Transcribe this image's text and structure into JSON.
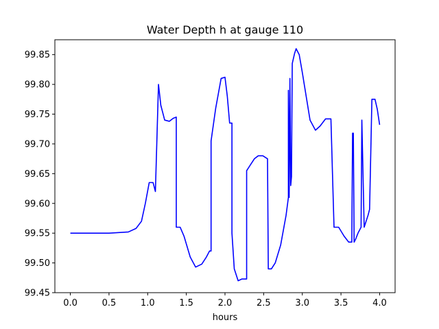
{
  "chart_data": {
    "type": "line",
    "title": "Water Depth h at gauge 110",
    "xlabel": "hours",
    "ylabel": "",
    "xlim": [
      -0.2,
      4.2
    ],
    "ylim": [
      99.45,
      99.875
    ],
    "xticks": [
      0.0,
      0.5,
      1.0,
      1.5,
      2.0,
      2.5,
      3.0,
      3.5,
      4.0
    ],
    "xtick_labels": [
      "0.0",
      "0.5",
      "1.0",
      "1.5",
      "2.0",
      "2.5",
      "3.0",
      "3.5",
      "4.0"
    ],
    "yticks": [
      99.45,
      99.5,
      99.55,
      99.6,
      99.65,
      99.7,
      99.75,
      99.8,
      99.85
    ],
    "ytick_labels": [
      "99.45",
      "99.50",
      "99.55",
      "99.60",
      "99.65",
      "99.70",
      "99.75",
      "99.80",
      "99.85"
    ],
    "grid": false,
    "series": [
      {
        "color": "#0000ff",
        "x": [
          0.0,
          0.5,
          0.75,
          0.85,
          0.92,
          0.97,
          1.02,
          1.07,
          1.1,
          1.14,
          1.14,
          1.17,
          1.22,
          1.28,
          1.33,
          1.37,
          1.37,
          1.42,
          1.47,
          1.55,
          1.62,
          1.7,
          1.76,
          1.8,
          1.82,
          1.82,
          1.88,
          1.95,
          2.0,
          2.03,
          2.06,
          2.09,
          2.09,
          2.12,
          2.17,
          2.22,
          2.28,
          2.28,
          2.28,
          2.33,
          2.38,
          2.43,
          2.49,
          2.55,
          2.55,
          2.56,
          2.6,
          2.65,
          2.72,
          2.79,
          2.82,
          2.82,
          2.83,
          2.84,
          2.85,
          2.85,
          2.86,
          2.87,
          2.87,
          2.9,
          2.92,
          2.96,
          3.0,
          3.05,
          3.1,
          3.17,
          3.23,
          3.3,
          3.37,
          3.41,
          3.41,
          3.47,
          3.54,
          3.6,
          3.64,
          3.65,
          3.66,
          3.67,
          3.67,
          3.69,
          3.72,
          3.76,
          3.77,
          3.77,
          3.8,
          3.85,
          3.87,
          3.87,
          3.9,
          3.94,
          3.97,
          4.0
        ],
        "y": [
          99.55,
          99.55,
          99.552,
          99.558,
          99.57,
          99.6,
          99.635,
          99.635,
          99.62,
          99.8,
          99.8,
          99.765,
          99.74,
          99.738,
          99.743,
          99.745,
          99.56,
          99.56,
          99.545,
          99.51,
          99.493,
          99.498,
          99.51,
          99.52,
          99.52,
          99.705,
          99.76,
          99.81,
          99.812,
          99.78,
          99.735,
          99.735,
          99.55,
          99.49,
          99.47,
          99.473,
          99.473,
          99.473,
          99.655,
          99.665,
          99.675,
          99.68,
          99.68,
          99.675,
          99.675,
          99.49,
          99.49,
          99.5,
          99.53,
          99.58,
          99.61,
          99.79,
          99.61,
          99.81,
          99.63,
          99.63,
          99.645,
          99.835,
          99.835,
          99.852,
          99.86,
          99.85,
          99.82,
          99.78,
          99.74,
          99.723,
          99.73,
          99.742,
          99.742,
          99.56,
          99.56,
          99.56,
          99.545,
          99.535,
          99.535,
          99.718,
          99.718,
          99.535,
          99.535,
          99.54,
          99.55,
          99.56,
          99.74,
          99.74,
          99.56,
          99.58,
          99.59,
          99.59,
          99.775,
          99.775,
          99.758,
          99.732
        ]
      }
    ]
  }
}
